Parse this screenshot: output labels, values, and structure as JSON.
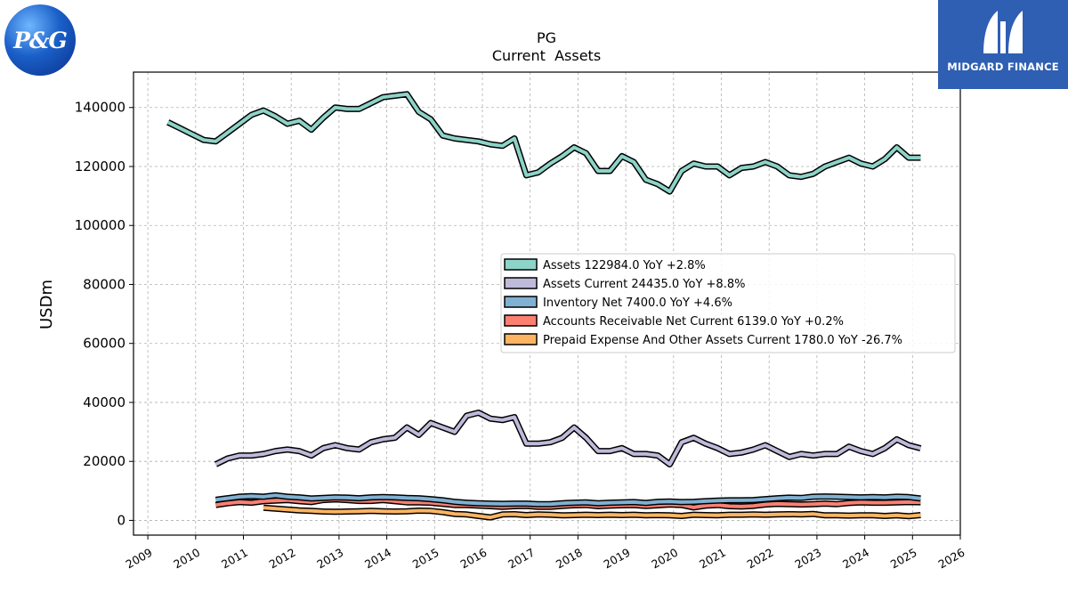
{
  "logos": {
    "left_text": "P&G",
    "right_text": "MIDGARD FINANCE"
  },
  "chart_data": {
    "type": "line",
    "title": "PG",
    "subtitle": "Current  Assets",
    "ylabel": "USDm",
    "xlabel": "",
    "xlim": [
      2008.7,
      2026.0
    ],
    "ylim": [
      -5000,
      152000
    ],
    "yticks": [
      0,
      20000,
      40000,
      60000,
      80000,
      100000,
      120000,
      140000
    ],
    "xticks": [
      2009,
      2010,
      2011,
      2012,
      2013,
      2014,
      2015,
      2016,
      2017,
      2018,
      2019,
      2020,
      2021,
      2022,
      2023,
      2024,
      2025,
      2026
    ],
    "grid": true,
    "legend_position": "center-right",
    "series": [
      {
        "name": "Assets",
        "legend": "Assets  122984.0 YoY +2.8%",
        "color": "#8dd3c7",
        "x": [
          2009.42,
          2009.67,
          2009.92,
          2010.17,
          2010.42,
          2010.67,
          2010.92,
          2011.17,
          2011.42,
          2011.67,
          2011.92,
          2012.17,
          2012.42,
          2012.67,
          2012.92,
          2013.17,
          2013.42,
          2013.67,
          2013.92,
          2014.17,
          2014.42,
          2014.67,
          2014.92,
          2015.17,
          2015.42,
          2015.67,
          2015.92,
          2016.17,
          2016.42,
          2016.67,
          2016.92,
          2017.17,
          2017.42,
          2017.67,
          2017.92,
          2018.17,
          2018.42,
          2018.67,
          2018.92,
          2019.17,
          2019.42,
          2019.67,
          2019.92,
          2020.17,
          2020.42,
          2020.67,
          2020.92,
          2021.17,
          2021.42,
          2021.67,
          2021.92,
          2022.17,
          2022.42,
          2022.67,
          2022.92,
          2023.17,
          2023.42,
          2023.67,
          2023.92,
          2024.17,
          2024.42,
          2024.67,
          2024.92,
          2025.17
        ],
        "y": [
          135000,
          133000,
          131000,
          129000,
          128500,
          131500,
          134500,
          137500,
          139000,
          137000,
          134500,
          135500,
          132500,
          136500,
          140000,
          139500,
          139500,
          141500,
          143500,
          144000,
          144500,
          138500,
          136000,
          130500,
          129500,
          129000,
          128500,
          127500,
          127000,
          129500,
          117000,
          118000,
          121000,
          123500,
          126500,
          124500,
          118500,
          118500,
          123500,
          121500,
          115500,
          114000,
          111500,
          118500,
          121000,
          120000,
          120000,
          117000,
          119500,
          120000,
          121500,
          120000,
          117000,
          116500,
          117500,
          120000,
          121500,
          123000,
          121000,
          120000,
          122500,
          126500,
          123000,
          122984
        ]
      },
      {
        "name": "Assets Current",
        "legend": "Assets Current  24435.0 YoY +8.8%",
        "color": "#bebada",
        "x": [
          2010.42,
          2010.67,
          2010.92,
          2011.17,
          2011.42,
          2011.67,
          2011.92,
          2012.17,
          2012.42,
          2012.67,
          2012.92,
          2013.17,
          2013.42,
          2013.67,
          2013.92,
          2014.17,
          2014.42,
          2014.67,
          2014.92,
          2015.17,
          2015.42,
          2015.67,
          2015.92,
          2016.17,
          2016.42,
          2016.67,
          2016.92,
          2017.17,
          2017.42,
          2017.67,
          2017.92,
          2018.17,
          2018.42,
          2018.67,
          2018.92,
          2019.17,
          2019.42,
          2019.67,
          2019.92,
          2020.17,
          2020.42,
          2020.67,
          2020.92,
          2021.17,
          2021.42,
          2021.67,
          2021.92,
          2022.17,
          2022.42,
          2022.67,
          2022.92,
          2023.17,
          2023.42,
          2023.67,
          2023.92,
          2024.17,
          2024.42,
          2024.67,
          2024.92,
          2025.17
        ],
        "y": [
          19000,
          21000,
          22000,
          22000,
          22500,
          23500,
          24000,
          23500,
          22000,
          24500,
          25500,
          24500,
          24000,
          26500,
          27500,
          28000,
          31500,
          29000,
          33000,
          31500,
          30000,
          35500,
          36500,
          34500,
          34000,
          35000,
          26000,
          26000,
          26500,
          28000,
          31500,
          28000,
          23500,
          23500,
          24500,
          22500,
          22500,
          22000,
          19000,
          26500,
          28000,
          26000,
          24500,
          22500,
          23000,
          24000,
          25500,
          23500,
          21500,
          22500,
          22000,
          22500,
          22500,
          25000,
          23500,
          22500,
          24500,
          27500,
          25500,
          24435
        ]
      },
      {
        "name": "Inventory Net",
        "legend": "Inventory Net  7400.0 YoY +4.6%",
        "color": "#80b1d3",
        "x": [
          2010.42,
          2010.67,
          2010.92,
          2011.17,
          2011.42,
          2011.67,
          2011.92,
          2012.17,
          2012.42,
          2012.67,
          2012.92,
          2013.17,
          2013.42,
          2013.67,
          2013.92,
          2014.17,
          2014.42,
          2014.67,
          2014.92,
          2015.17,
          2015.42,
          2015.67,
          2015.92,
          2016.17,
          2016.42,
          2016.67,
          2016.92,
          2017.17,
          2017.42,
          2017.67,
          2017.92,
          2018.17,
          2018.42,
          2018.67,
          2018.92,
          2019.17,
          2019.42,
          2019.67,
          2019.92,
          2020.17,
          2020.42,
          2020.67,
          2020.92,
          2021.17,
          2021.42,
          2021.67,
          2021.92,
          2022.17,
          2022.42,
          2022.67,
          2022.92,
          2023.17,
          2023.42,
          2023.67,
          2023.92,
          2024.17,
          2024.42,
          2024.67,
          2024.92,
          2025.17
        ],
        "y": [
          7000,
          7500,
          8000,
          8200,
          8000,
          8500,
          8000,
          7800,
          7400,
          7600,
          7800,
          7700,
          7500,
          7800,
          7900,
          7800,
          7600,
          7500,
          7200,
          6800,
          6300,
          6000,
          5800,
          5700,
          5600,
          5700,
          5700,
          5500,
          5500,
          5800,
          6000,
          6100,
          5800,
          6000,
          6100,
          6200,
          5900,
          6300,
          6400,
          6200,
          6300,
          6500,
          6700,
          6800,
          6800,
          6900,
          7200,
          7500,
          7700,
          7600,
          8000,
          8100,
          8000,
          7900,
          7800,
          7900,
          7800,
          8000,
          7900,
          7400
        ]
      },
      {
        "name": "Accounts Receivable Net Current",
        "legend": "Accounts Receivable Net Current  6139.0 YoY +0.2%",
        "color": "#fb8072",
        "x": [
          2010.42,
          2010.67,
          2010.92,
          2011.17,
          2011.42,
          2011.67,
          2011.92,
          2012.17,
          2012.42,
          2012.67,
          2012.92,
          2013.17,
          2013.42,
          2013.67,
          2013.92,
          2014.17,
          2014.42,
          2014.67,
          2014.92,
          2015.17,
          2015.42,
          2015.67,
          2015.92,
          2016.17,
          2016.42,
          2016.67,
          2016.92,
          2017.17,
          2017.42,
          2017.67,
          2017.92,
          2018.17,
          2018.42,
          2018.67,
          2018.92,
          2019.17,
          2019.42,
          2019.67,
          2019.92,
          2020.17,
          2020.42,
          2020.67,
          2020.92,
          2021.17,
          2021.42,
          2021.67,
          2021.92,
          2022.17,
          2022.42,
          2022.67,
          2022.92,
          2023.17,
          2023.42,
          2023.67,
          2023.92,
          2024.17,
          2024.42,
          2024.67,
          2024.92,
          2025.17
        ],
        "y": [
          5200,
          5800,
          6200,
          6000,
          6500,
          6700,
          6900,
          6500,
          6200,
          6900,
          7100,
          6900,
          6600,
          6600,
          6900,
          6500,
          6100,
          6100,
          6000,
          5600,
          5200,
          5200,
          5000,
          4800,
          4600,
          4800,
          4900,
          4600,
          4600,
          4900,
          5100,
          5200,
          4800,
          5000,
          5100,
          5200,
          4900,
          5100,
          5400,
          5200,
          4400,
          5000,
          5200,
          4800,
          4700,
          4900,
          5400,
          5600,
          5500,
          5400,
          5500,
          5700,
          5500,
          5900,
          6100,
          6000,
          6000,
          6100,
          6200,
          6139
        ]
      },
      {
        "name": "Prepaid Expense And Other Assets Current",
        "legend": "Prepaid Expense And Other Assets Current  1780.0 YoY -26.7%",
        "color": "#fdb462",
        "x": [
          2011.42,
          2011.67,
          2011.92,
          2012.17,
          2012.42,
          2012.67,
          2012.92,
          2013.17,
          2013.42,
          2013.67,
          2013.92,
          2014.17,
          2014.42,
          2014.67,
          2014.92,
          2015.17,
          2015.42,
          2015.67,
          2015.92,
          2016.17,
          2016.42,
          2016.67,
          2016.92,
          2017.17,
          2017.42,
          2017.67,
          2017.92,
          2018.17,
          2018.42,
          2018.67,
          2018.92,
          2019.17,
          2019.42,
          2019.67,
          2019.92,
          2020.17,
          2020.42,
          2020.67,
          2020.92,
          2021.17,
          2021.42,
          2021.67,
          2021.92,
          2022.17,
          2022.42,
          2022.67,
          2022.92,
          2023.17,
          2023.42,
          2023.67,
          2023.92,
          2024.17,
          2024.42,
          2024.67,
          2024.92,
          2025.17
        ],
        "y": [
          4300,
          4000,
          3700,
          3400,
          3200,
          3000,
          2900,
          3000,
          3100,
          3200,
          3100,
          3000,
          3100,
          3300,
          3200,
          2800,
          2200,
          2000,
          1500,
          1000,
          2000,
          2100,
          1800,
          2000,
          1900,
          1700,
          1800,
          1900,
          1800,
          1900,
          1800,
          1900,
          1700,
          1800,
          1700,
          1500,
          1900,
          1800,
          1700,
          1900,
          1900,
          2000,
          1900,
          2000,
          2100,
          2000,
          2200,
          1700,
          1700,
          1600,
          1700,
          1700,
          1500,
          1700,
          1400,
          1780
        ]
      }
    ]
  }
}
